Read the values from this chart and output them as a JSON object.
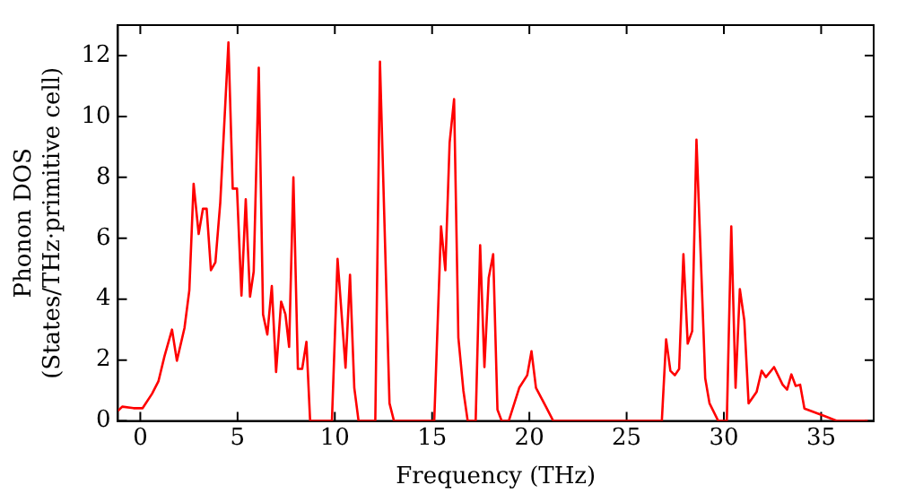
{
  "chart_data": {
    "type": "line",
    "xlabel": "Frequency (THz)",
    "ylabel": "Phonon DOS\n(States/THz·primitive cell)",
    "xlim": [
      -1.15,
      37.7
    ],
    "xticks": [
      0,
      5,
      10,
      15,
      20,
      25,
      30,
      35
    ],
    "ylim": [
      0,
      13
    ],
    "yticks": [
      0,
      2,
      4,
      6,
      8,
      10,
      12
    ],
    "grid": false,
    "legend": false,
    "marker": "none",
    "line_style": "solid",
    "series": [
      {
        "color": "#ff0000",
        "x": [
          -1.15,
          -0.93,
          -0.35,
          0.12,
          0.6,
          0.93,
          1.24,
          1.63,
          1.88,
          2.27,
          2.52,
          2.74,
          3.0,
          3.22,
          3.41,
          3.63,
          3.86,
          4.11,
          4.53,
          4.75,
          4.97,
          5.2,
          5.42,
          5.64,
          5.83,
          6.09,
          6.31,
          6.53,
          6.76,
          6.98,
          7.24,
          7.46,
          7.65,
          7.87,
          8.1,
          8.32,
          8.54,
          8.73,
          9.85,
          10.14,
          10.55,
          10.78,
          11.0,
          11.22,
          12.08,
          12.32,
          12.81,
          13.04,
          15.11,
          15.46,
          15.68,
          15.9,
          16.13,
          16.35,
          16.61,
          16.83,
          17.24,
          17.47,
          17.69,
          17.91,
          18.14,
          18.36,
          18.58,
          18.94,
          19.48,
          19.89,
          20.11,
          20.34,
          20.85,
          21.23,
          26.81,
          27.03,
          27.25,
          27.48,
          27.7,
          27.92,
          28.14,
          28.37,
          28.59,
          29.04,
          29.26,
          29.71,
          30.15,
          30.38,
          30.6,
          30.82,
          31.05,
          31.27,
          31.68,
          31.94,
          32.16,
          32.58,
          33.02,
          33.25,
          33.47,
          33.69,
          33.92,
          34.14,
          35.19,
          35.83,
          37.4
        ],
        "values": [
          0.33,
          0.47,
          0.42,
          0.42,
          0.89,
          1.3,
          2.12,
          3.0,
          1.98,
          3.05,
          4.29,
          7.79,
          6.14,
          6.97,
          6.97,
          4.95,
          5.21,
          7.17,
          12.43,
          7.63,
          7.63,
          4.12,
          7.28,
          4.08,
          4.91,
          11.6,
          3.5,
          2.84,
          4.43,
          1.61,
          3.92,
          3.5,
          2.43,
          8.0,
          1.71,
          1.71,
          2.6,
          0,
          0,
          5.32,
          1.75,
          4.8,
          1.09,
          0,
          0,
          11.8,
          0.58,
          0,
          0,
          6.39,
          4.95,
          9.13,
          10.57,
          2.74,
          0.99,
          0,
          0,
          5.77,
          1.77,
          4.7,
          5.48,
          0.37,
          0,
          0,
          1.09,
          1.5,
          2.29,
          1.09,
          0.47,
          0,
          0,
          2.68,
          1.65,
          1.5,
          1.71,
          5.48,
          2.54,
          2.95,
          9.24,
          1.4,
          0.58,
          0,
          0,
          6.39,
          1.09,
          4.33,
          3.3,
          0.58,
          0.95,
          1.65,
          1.44,
          1.77,
          1.19,
          1.03,
          1.53,
          1.15,
          1.19,
          0.41,
          0.16,
          0,
          0
        ]
      }
    ]
  }
}
